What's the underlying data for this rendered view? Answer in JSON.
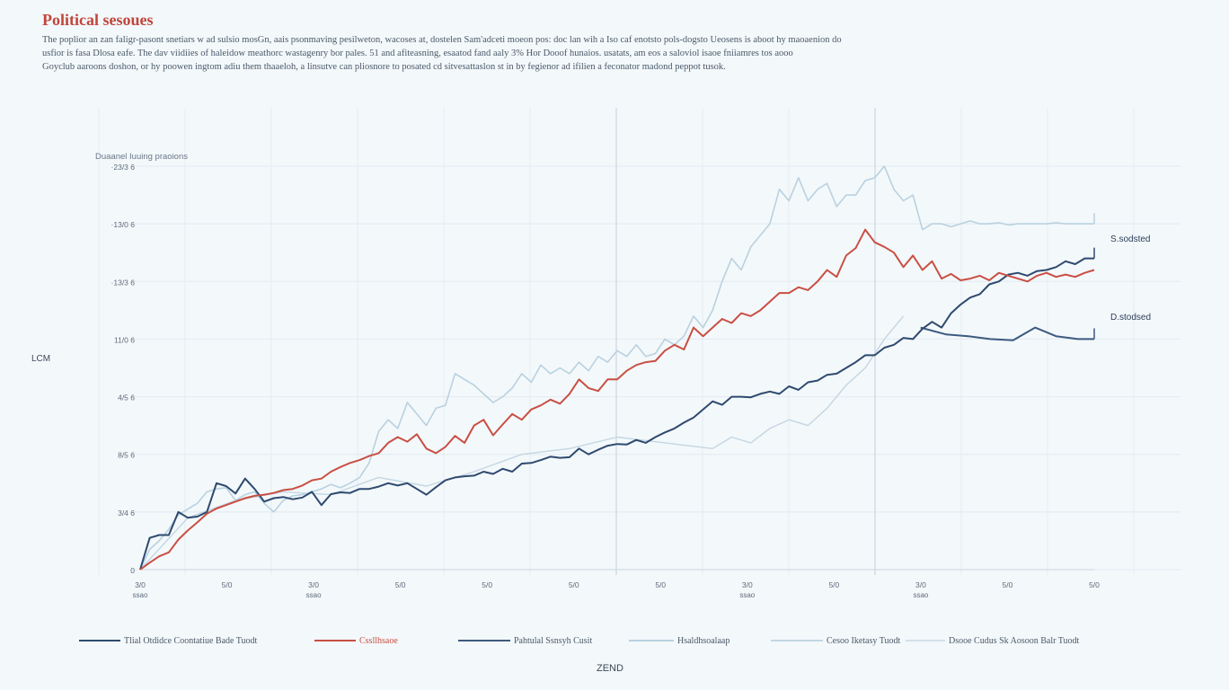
{
  "header": {
    "title": "Political sesoues",
    "description": [
      "The poplior an zan faligr-pasont snetiars w ad sulsio mosGn, aais psonmaving pesilweton, wacoses at, dostelen Sam'adceti moeon pos: doc lan wih a Iso caf enotsto pols-dogsto Ueosens is aboot hy maoaenion do",
      "usfior is fasa Dlosa eafe. The dav viidiies of haleidow meathorc wastagenry bor pales. 51 and afiteasning, esaatod fand aaly 3% Hor Dooof hunaios. usatats, am eos a saloviol isaoe fniiamres tos aooo",
      "Goyclub aaroons doshon, or hy poowen ingtom adiu them thaaeloh, a linsutve can pliosnore to posated cd sitvesattaslon st in by fegienor ad ifilien a feconator madond peppot tusok."
    ]
  },
  "chart_data": {
    "type": "line",
    "title": "Political sesoues",
    "subtitle": "Duaanel Iuuing praoions",
    "ylabel": "LCM",
    "xlabel": "ZEND",
    "y_tick_labels": [
      "0",
      "3/4 6",
      "8/5 6",
      "4/5 6",
      "11/0 6",
      "·13/3 6",
      "·13/0 6",
      "·23/3 6"
    ],
    "x_tick_labels": [
      {
        "top": "3/0",
        "bottom": "ssao"
      },
      {
        "top": "5/0"
      },
      {
        "top": "3/0",
        "bottom": "ssao"
      },
      {
        "top": "5/0"
      },
      {
        "top": "5/0"
      },
      {
        "top": "5/0"
      },
      {
        "top": "5/0"
      },
      {
        "top": "3/0",
        "bottom": "ssao"
      },
      {
        "top": "5/0"
      },
      {
        "top": "3/0",
        "bottom": "ssao"
      },
      {
        "top": "5/0"
      },
      {
        "top": "5/0"
      }
    ],
    "ylim": [
      0,
      7
    ],
    "xlim": [
      0,
      100
    ],
    "grid": true,
    "legend_position": "bottom",
    "end_labels": [
      "S.sodsted",
      "D.stodsed"
    ],
    "series": [
      {
        "name": "Tlial Otdidce Coontatiue Bade Tuodt",
        "color": "#2e4a6e",
        "x": [
          0,
          1,
          2,
          3,
          4,
          5,
          6,
          7,
          8,
          9,
          10,
          11,
          12,
          13,
          14,
          15,
          16,
          17,
          18,
          19,
          20,
          21,
          22,
          23,
          24,
          25,
          26,
          27,
          28,
          29,
          30,
          31,
          32,
          33,
          34,
          35,
          36,
          37,
          38,
          39,
          40,
          41,
          42,
          43,
          44,
          45,
          46,
          47,
          48,
          49,
          50,
          51,
          52,
          53,
          54,
          55,
          56,
          57,
          58,
          59,
          60,
          61,
          62,
          63,
          64,
          65,
          66,
          67,
          68,
          69,
          70,
          71,
          72,
          73,
          74,
          75,
          76,
          77,
          78,
          79,
          80,
          81,
          82,
          83,
          84,
          85,
          86,
          87,
          88,
          89,
          90,
          91,
          92,
          93,
          94,
          95,
          96,
          97,
          98,
          99,
          100
        ],
        "y": [
          0.0,
          0.55,
          0.6,
          0.6,
          1.0,
          0.9,
          0.92,
          1.0,
          1.5,
          1.45,
          1.32,
          1.58,
          1.4,
          1.18,
          1.24,
          1.26,
          1.22,
          1.25,
          1.35,
          1.12,
          1.31,
          1.34,
          1.33,
          1.4,
          1.4,
          1.44,
          1.5,
          1.46,
          1.5,
          1.4,
          1.3,
          1.43,
          1.55,
          1.6,
          1.62,
          1.63,
          1.7,
          1.66,
          1.75,
          1.7,
          1.84,
          1.85,
          1.9,
          1.96,
          1.94,
          1.95,
          2.1,
          2.0,
          2.08,
          2.15,
          2.18,
          2.17,
          2.25,
          2.2,
          2.3,
          2.38,
          2.45,
          2.55,
          2.64,
          2.78,
          2.92,
          2.86,
          3.0,
          3.0,
          2.99,
          3.05,
          3.09,
          3.05,
          3.18,
          3.12,
          3.25,
          3.28,
          3.38,
          3.4,
          3.5,
          3.6,
          3.72,
          3.72,
          3.85,
          3.9,
          4.02,
          4.0,
          4.18,
          4.3,
          4.2,
          4.45,
          4.6,
          4.72,
          4.78,
          4.95,
          5.0,
          5.12,
          5.15,
          5.1,
          5.18,
          5.2,
          5.25,
          5.35,
          5.3,
          5.4,
          5.4
        ]
      },
      {
        "name": "Cssllhsaoe",
        "color": "#c94f43",
        "x": [
          0,
          1,
          2,
          3,
          4,
          5,
          6,
          7,
          8,
          9,
          10,
          11,
          12,
          13,
          14,
          15,
          16,
          17,
          18,
          19,
          20,
          21,
          22,
          23,
          24,
          25,
          26,
          27,
          28,
          29,
          30,
          31,
          32,
          33,
          34,
          35,
          36,
          37,
          38,
          39,
          40,
          41,
          42,
          43,
          44,
          45,
          46,
          47,
          48,
          49,
          50,
          51,
          52,
          53,
          54,
          55,
          56,
          57,
          58,
          59,
          60,
          61,
          62,
          63,
          64,
          65,
          66,
          67,
          68,
          69,
          70,
          71,
          72,
          73,
          74,
          75,
          76,
          77,
          78,
          79,
          80,
          81,
          82,
          83,
          84,
          85,
          86,
          87,
          88,
          89,
          90,
          91,
          92,
          93,
          94,
          95,
          96,
          97,
          98,
          99,
          100
        ],
        "y": [
          0.0,
          0.12,
          0.23,
          0.3,
          0.52,
          0.68,
          0.82,
          0.97,
          1.06,
          1.12,
          1.18,
          1.24,
          1.28,
          1.3,
          1.33,
          1.38,
          1.4,
          1.46,
          1.55,
          1.58,
          1.7,
          1.78,
          1.85,
          1.9,
          1.97,
          2.02,
          2.2,
          2.3,
          2.22,
          2.35,
          2.1,
          2.02,
          2.13,
          2.32,
          2.2,
          2.5,
          2.6,
          2.33,
          2.52,
          2.7,
          2.6,
          2.78,
          2.85,
          2.95,
          2.88,
          3.05,
          3.3,
          3.15,
          3.1,
          3.3,
          3.3,
          3.45,
          3.55,
          3.6,
          3.62,
          3.8,
          3.9,
          3.82,
          4.2,
          4.05,
          4.2,
          4.35,
          4.28,
          4.45,
          4.4,
          4.5,
          4.65,
          4.8,
          4.8,
          4.9,
          4.85,
          5.0,
          5.2,
          5.08,
          5.45,
          5.58,
          5.9,
          5.68,
          5.6,
          5.5,
          5.25,
          5.45,
          5.2,
          5.35,
          5.05,
          5.13,
          5.02,
          5.05,
          5.1,
          5.02,
          5.15,
          5.1,
          5.05,
          5.0,
          5.1,
          5.15,
          5.08,
          5.12,
          5.08,
          5.15,
          5.2
        ]
      },
      {
        "name": "Pahtulal Ssnsyh Cusit",
        "color": "#3d5a7f",
        "x": [
          81.8,
          84.5,
          86.8,
          89.1,
          91.5,
          93.8,
          96.0,
          98.3,
          100
        ],
        "y": [
          4.2,
          4.08,
          4.05,
          4.0,
          3.98,
          4.2,
          4.05,
          4.0,
          4.0
        ]
      },
      {
        "name": "Hsaldhsoalaap",
        "color": "#b9d1df",
        "x": [
          0,
          1,
          2,
          3,
          4,
          5,
          6,
          7,
          8,
          9,
          10,
          11,
          12,
          13,
          14,
          15,
          16,
          17,
          18,
          19,
          20,
          21,
          22,
          23,
          24,
          25,
          26,
          27,
          28,
          29,
          30,
          31,
          32,
          33,
          34,
          35,
          36,
          37,
          38,
          39,
          40,
          41,
          42,
          43,
          44,
          45,
          46,
          47,
          48,
          49,
          50,
          51,
          52,
          53,
          54,
          55,
          56,
          57,
          58,
          59,
          60,
          61,
          62,
          63,
          64,
          65,
          66,
          67,
          68,
          69,
          70,
          71,
          72,
          73,
          74,
          75,
          76,
          77,
          78,
          79,
          80,
          81,
          82,
          83,
          84,
          85,
          86,
          87,
          88,
          89,
          90,
          91,
          92,
          93,
          94,
          95,
          96,
          97,
          98,
          99,
          100
        ],
        "y": [
          0.0,
          0.35,
          0.5,
          0.7,
          0.95,
          1.05,
          1.15,
          1.35,
          1.4,
          1.42,
          1.2,
          1.3,
          1.35,
          1.15,
          1.0,
          1.2,
          1.28,
          1.3,
          1.35,
          1.4,
          1.48,
          1.42,
          1.5,
          1.6,
          1.85,
          2.4,
          2.6,
          2.45,
          2.9,
          2.7,
          2.5,
          2.8,
          2.85,
          3.4,
          3.3,
          3.2,
          3.05,
          2.9,
          3.0,
          3.15,
          3.4,
          3.25,
          3.55,
          3.4,
          3.5,
          3.4,
          3.6,
          3.45,
          3.7,
          3.6,
          3.8,
          3.7,
          3.9,
          3.7,
          3.75,
          4.0,
          3.9,
          4.05,
          4.4,
          4.2,
          4.5,
          5.0,
          5.4,
          5.2,
          5.6,
          5.8,
          6.0,
          6.6,
          6.4,
          6.8,
          6.4,
          6.6,
          6.7,
          6.3,
          6.5,
          6.5,
          6.75,
          6.8,
          7.0,
          6.6,
          6.4,
          6.5,
          5.9,
          6.0,
          6.0,
          5.95,
          6.0,
          6.05,
          6.0,
          6.0,
          6.02,
          5.98,
          6.0,
          6.0,
          6.0,
          6.0,
          6.02,
          6.0,
          6.0,
          6.0,
          6.0
        ]
      },
      {
        "name": "Cesoo Iketasy Tuodt",
        "color": "#c3d6e2",
        "x": [
          0,
          5,
          10,
          15,
          20,
          25,
          30,
          35,
          40,
          45,
          50,
          55,
          60,
          62,
          64,
          66,
          68,
          70,
          72,
          74,
          76,
          78,
          80
        ],
        "y": [
          0.0,
          0.9,
          1.2,
          1.35,
          1.3,
          1.6,
          1.45,
          1.7,
          2.0,
          2.1,
          2.3,
          2.2,
          2.1,
          2.3,
          2.2,
          2.45,
          2.6,
          2.5,
          2.8,
          3.2,
          3.5,
          4.0,
          4.4
        ]
      },
      {
        "name": "Dsooe Cudus Sk Aosoon Balr Tuodt",
        "color": "#d2e1ea",
        "x": [],
        "y": []
      }
    ]
  }
}
